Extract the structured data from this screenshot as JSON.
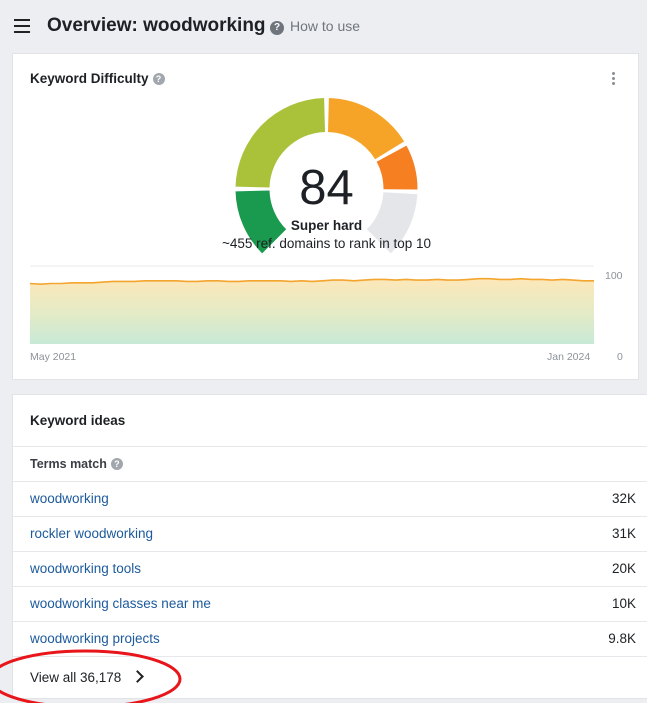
{
  "header": {
    "title": "Overview: woodworking",
    "how_to_use": "How to use"
  },
  "keyword_difficulty": {
    "title": "Keyword Difficulty",
    "score": "84",
    "score_value": 84,
    "score_max": 100,
    "label": "Super hard",
    "subtitle": "~455 ref. domains to rank in top 10",
    "colors": {
      "green": "#1a9a4e",
      "yellow_green": "#a9c23a",
      "orange": "#f6a427",
      "dark_orange": "#f57f21",
      "empty": "#e4e6ea",
      "trend_line": "#f3a52f"
    }
  },
  "chart_data": {
    "type": "area",
    "x_start": "May 2021",
    "x_end": "Jan 2024",
    "ylim": [
      0,
      100
    ],
    "y_ticks": [
      "100",
      "0"
    ],
    "values": [
      89,
      88,
      89,
      89,
      90,
      90,
      90,
      91,
      92,
      92,
      92,
      93,
      93,
      93,
      93,
      92,
      92,
      93,
      93,
      92,
      92,
      93,
      93,
      93,
      93,
      92,
      93,
      92,
      93,
      94,
      94,
      93,
      94,
      95,
      95,
      94,
      95,
      94,
      94,
      95,
      94,
      94,
      95,
      96,
      96,
      95,
      95,
      96,
      95,
      95,
      94,
      95,
      94,
      93,
      93
    ]
  },
  "keyword_ideas": {
    "title": "Keyword ideas",
    "terms_match": "Terms match",
    "rows": [
      {
        "keyword": "woodworking",
        "volume": "32K"
      },
      {
        "keyword": "rockler woodworking",
        "volume": "31K"
      },
      {
        "keyword": "woodworking tools",
        "volume": "20K"
      },
      {
        "keyword": "woodworking classes near me",
        "volume": "10K"
      },
      {
        "keyword": "woodworking projects",
        "volume": "9.8K"
      }
    ],
    "view_all": "View all 36,178"
  },
  "annotation": {
    "color": "#e8161b"
  },
  "icons": [
    "hamburger-icon",
    "help-icon",
    "kebab-icon",
    "chevron-right-icon"
  ]
}
